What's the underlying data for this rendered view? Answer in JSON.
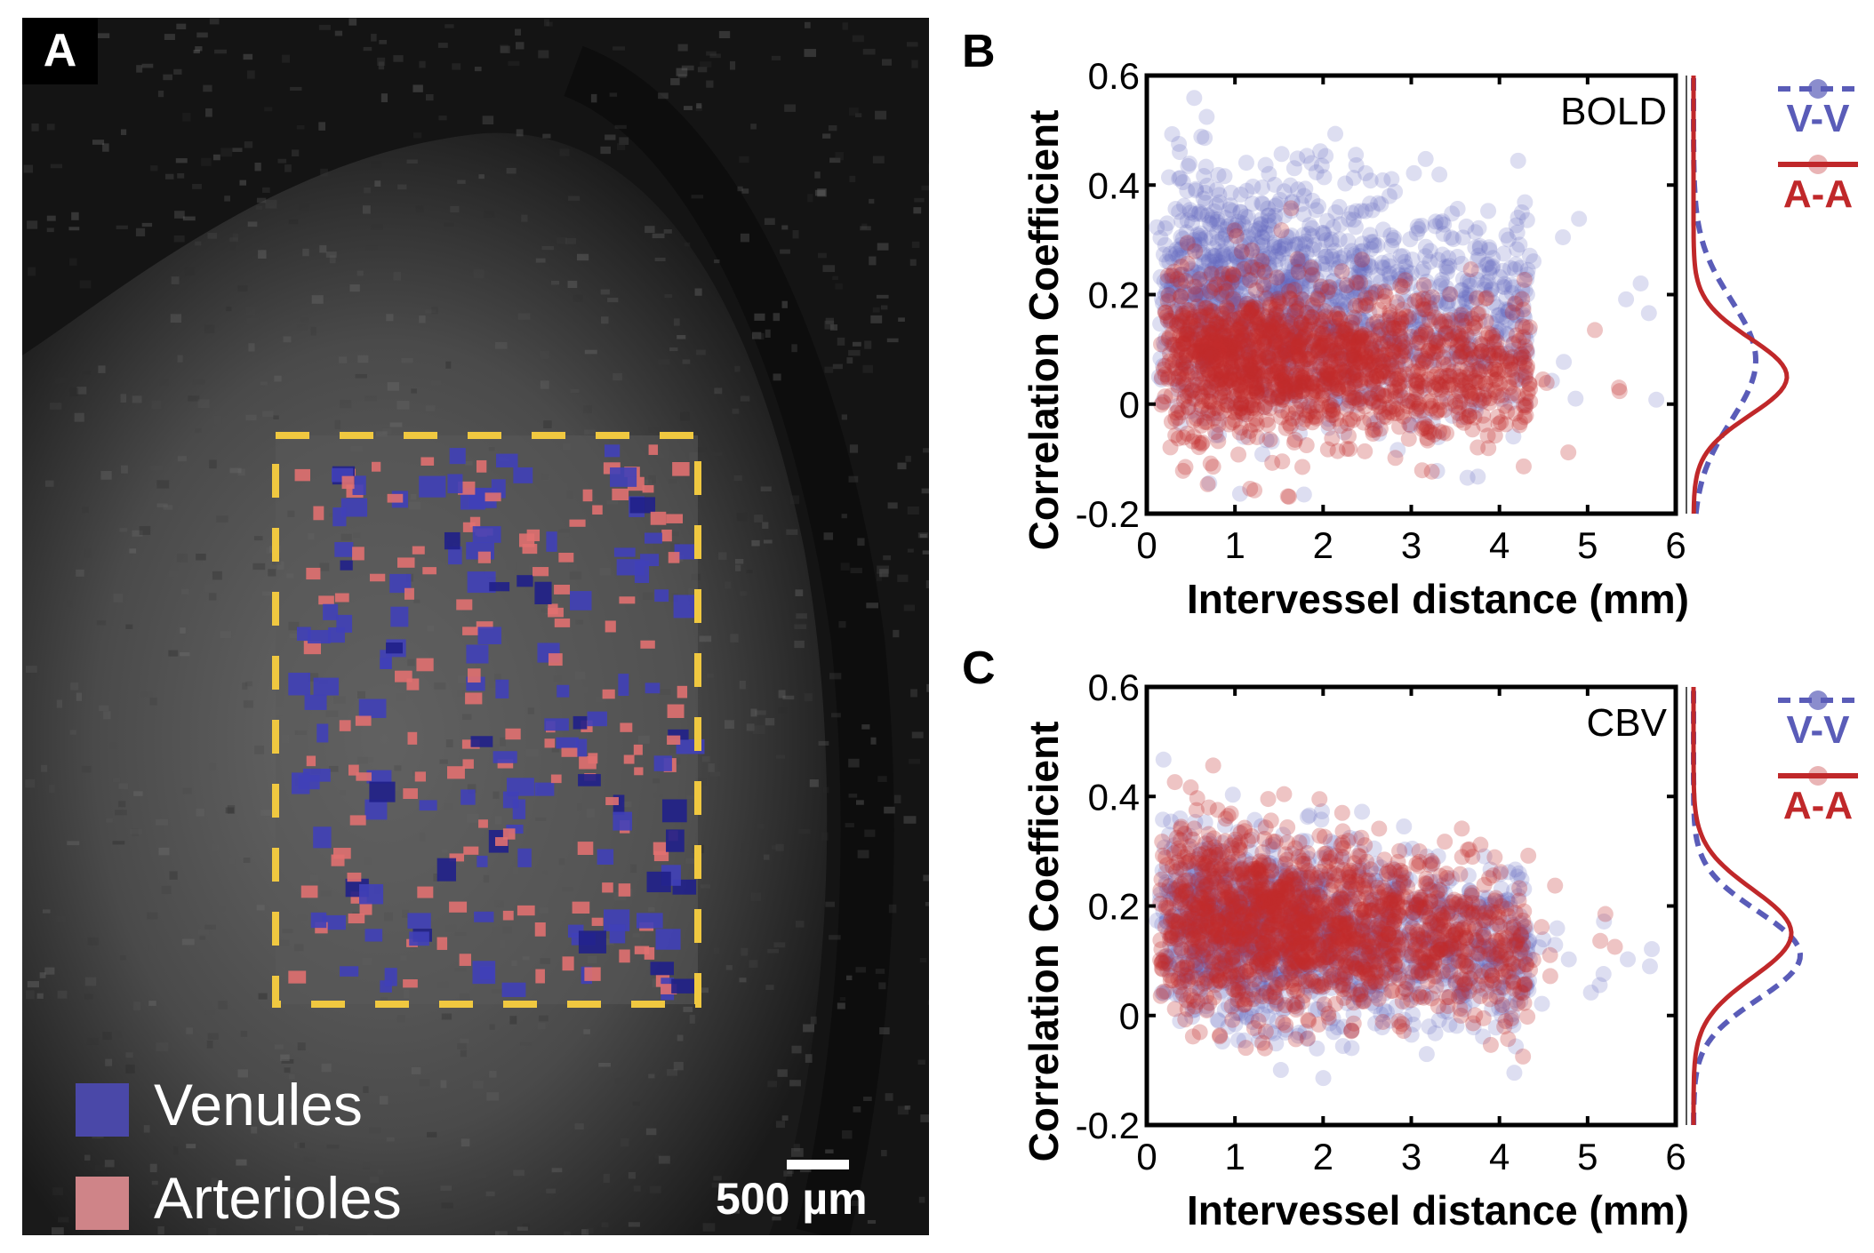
{
  "panel_a": {
    "label": "A",
    "legend": [
      {
        "label": "Venules",
        "color": "#4a48a8"
      },
      {
        "label": "Arterioles",
        "color": "#cf8488"
      }
    ],
    "roi_color": "#f0c840",
    "scale_bar_label": "500 µm"
  },
  "chart_data": [
    {
      "panel": "B",
      "type": "scatter",
      "title": "",
      "annotation": "BOLD",
      "xlabel": "Intervessel distance (mm)",
      "ylabel": "Correlation Coefficient",
      "xlim": [
        0,
        6
      ],
      "ylim": [
        -0.2,
        0.6
      ],
      "xticks": [
        "0",
        "1",
        "2",
        "3",
        "4",
        "5",
        "6"
      ],
      "yticks": [
        "-0.2",
        "0",
        "0.2",
        "0.4",
        "0.6"
      ],
      "grid": false,
      "legend_position": "right",
      "series": [
        {
          "name": "V-V",
          "color": "#5a5cb8",
          "line_style": "dashed",
          "x_range": [
            0.1,
            5.8
          ],
          "mean_at_near": 0.22,
          "mean_at_far": 0.12,
          "sd": 0.12,
          "distribution_peak": 0.08,
          "distribution_sd": 0.11
        },
        {
          "name": "A-A",
          "color": "#c0282a",
          "line_style": "solid",
          "x_range": [
            0.1,
            5.8
          ],
          "mean_at_near": 0.09,
          "mean_at_far": 0.04,
          "sd": 0.08,
          "distribution_peak": 0.05,
          "distribution_sd": 0.07
        }
      ]
    },
    {
      "panel": "C",
      "type": "scatter",
      "title": "",
      "annotation": "CBV",
      "xlabel": "Intervessel distance (mm)",
      "ylabel": "Correlation Coefficient",
      "xlim": [
        0,
        6
      ],
      "ylim": [
        -0.2,
        0.6
      ],
      "xticks": [
        "0",
        "1",
        "2",
        "3",
        "4",
        "5",
        "6"
      ],
      "yticks": [
        "-0.2",
        "0",
        "0.2",
        "0.4",
        "0.6"
      ],
      "grid": false,
      "legend_position": "right",
      "series": [
        {
          "name": "V-V",
          "color": "#5a5cb8",
          "line_style": "dashed",
          "x_range": [
            0.1,
            5.8
          ],
          "mean_at_near": 0.17,
          "mean_at_far": 0.09,
          "sd": 0.09,
          "distribution_peak": 0.11,
          "distribution_sd": 0.08
        },
        {
          "name": "A-A",
          "color": "#c0282a",
          "line_style": "solid",
          "x_range": [
            0.1,
            5.8
          ],
          "mean_at_near": 0.19,
          "mean_at_far": 0.11,
          "sd": 0.09,
          "distribution_peak": 0.15,
          "distribution_sd": 0.08
        }
      ]
    }
  ]
}
